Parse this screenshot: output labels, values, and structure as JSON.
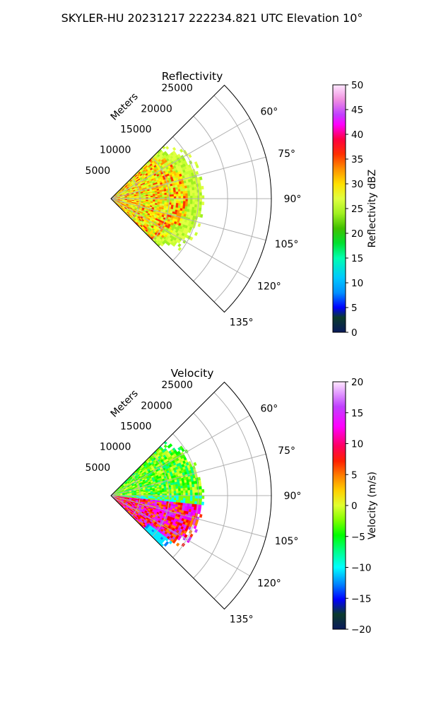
{
  "figure": {
    "suptitle": "SKYLER-HU  20231217  222234.821 UTC Elevation 10°"
  },
  "chart_data": [
    {
      "type": "heatmap",
      "subtype": "polar-sector-ppi",
      "title": "Reflectivity",
      "r_label": "Meters",
      "r_ticks": [
        5000,
        10000,
        15000,
        20000,
        25000
      ],
      "r_tick_labels": [
        "5000",
        "10000",
        "15000",
        "20000",
        "25000"
      ],
      "rlim": [
        0,
        27500
      ],
      "theta_range_deg": [
        45,
        135
      ],
      "theta_ticks": [
        60,
        75,
        90,
        105,
        120,
        135
      ],
      "theta_tick_labels": [
        "60°",
        "75°",
        "90°",
        "105°",
        "120°",
        "135°"
      ],
      "grid": true,
      "colorbar": {
        "label": "Reflectivity dBZ",
        "ticks": [
          0,
          5,
          10,
          15,
          20,
          25,
          30,
          35,
          40,
          45,
          50
        ],
        "tick_labels": [
          "0",
          "5",
          "10",
          "15",
          "20",
          "25",
          "30",
          "35",
          "40",
          "45",
          "50"
        ],
        "vmin": 0,
        "vmax": 50,
        "colormap": "NWSRef-like"
      },
      "echo_extent_m": [
        0,
        16000
      ],
      "dominant_values": "mostly 20–30 dBZ with embedded 35–40 dBZ cores"
    },
    {
      "type": "heatmap",
      "subtype": "polar-sector-ppi",
      "title": "Velocity",
      "r_label": "Meters",
      "r_ticks": [
        5000,
        10000,
        15000,
        20000,
        25000
      ],
      "r_tick_labels": [
        "5000",
        "10000",
        "15000",
        "20000",
        "25000"
      ],
      "rlim": [
        0,
        27500
      ],
      "theta_range_deg": [
        45,
        135
      ],
      "theta_ticks": [
        60,
        75,
        90,
        105,
        120,
        135
      ],
      "theta_tick_labels": [
        "60°",
        "75°",
        "90°",
        "105°",
        "120°",
        "135°"
      ],
      "grid": true,
      "colorbar": {
        "label": "Velocity (m/s)",
        "ticks": [
          -20,
          -15,
          -10,
          -5,
          0,
          5,
          10,
          15,
          20
        ],
        "tick_labels": [
          "−20",
          "−15",
          "−10",
          "−5",
          "0",
          "5",
          "10",
          "15",
          "20"
        ],
        "vmin": -20,
        "vmax": 20,
        "colormap": "rainbow-velocity"
      },
      "echo_extent_m": [
        0,
        16000
      ],
      "dominant_values": "north of ~90°: 0 to -10 m/s; south of ~90°: 10 to 18 m/s; far south edge: -10 to -15 m/s"
    }
  ]
}
